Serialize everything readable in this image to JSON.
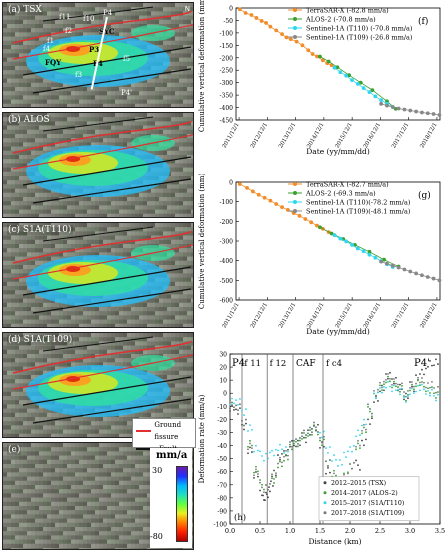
{
  "panels": [
    {
      "label": "(a) TSX"
    },
    {
      "label": "(b) ALOS"
    },
    {
      "label": "(c) S1A(T110)"
    },
    {
      "label": "(d) S1A(T109)"
    },
    {
      "label": "(e)"
    }
  ],
  "map_a_labels": {
    "p4": "P4",
    "p4b": "P4'",
    "syc": "SYC",
    "fqy": "FQY",
    "f4": "F4",
    "p3": "P3",
    "f2": "f2",
    "f4b": "f4",
    "f5": "f5",
    "f3": "f3",
    "f1": "f1",
    "f11": "f11",
    "f10": "f10"
  },
  "north": "N",
  "legend_map": {
    "ground_fissure": "Ground fissure",
    "fault": "Fault",
    "unit": "mm/a",
    "max": "30",
    "min": "-80",
    "ground_fissure_color": "#e03030",
    "fault_color": "#111111"
  },
  "chart_data": [
    {
      "type": "scatter",
      "panel_label": "(f)",
      "xlabel": "Date (yy/mm/dd)",
      "ylabel": "Cumulative vertical deformation (mm)",
      "ylim": [
        -450,
        0
      ],
      "yticks": [
        0,
        -50,
        -100,
        -150,
        -200,
        -250,
        -300,
        -350,
        -400,
        -450
      ],
      "xticks": [
        "2011/12/1",
        "2012/12/1",
        "2013/12/1",
        "2014/12/1",
        "2015/12/1",
        "2016/12/1",
        "2017/12/1",
        "2018/12/1"
      ],
      "xlim": [
        2011.92,
        2018.92
      ],
      "series": [
        {
          "name": "TerraSAR-X (-82.8 mm/a)",
          "color": "#f28c28",
          "x": [
            2012.05,
            2012.25,
            2012.45,
            2012.62,
            2012.8,
            2012.95,
            2013.1,
            2013.3,
            2013.5,
            2013.65,
            2013.8,
            2014.0,
            2014.2,
            2014.4,
            2014.55,
            2014.7,
            2014.9,
            2015.05,
            2015.2,
            2015.35
          ],
          "y": [
            -5,
            -20,
            -28,
            -40,
            -52,
            -60,
            -75,
            -90,
            -105,
            -118,
            -125,
            -135,
            -150,
            -170,
            -185,
            -195,
            -210,
            -222,
            -230,
            -240
          ]
        },
        {
          "name": "ALOS-2 (-70.8 mm/a)",
          "color": "#3aa02e",
          "x": [
            2014.8,
            2015.1,
            2015.4,
            2015.8,
            2016.2,
            2016.6,
            2017.1,
            2017.4
          ],
          "y": [
            -195,
            -215,
            -238,
            -270,
            -300,
            -330,
            -375,
            -405
          ]
        },
        {
          "name": "Sentinel-1A (T110) (-70.8 mm/a)",
          "color": "#2fd6f0",
          "x": [
            2015.3,
            2015.5,
            2015.7,
            2015.9,
            2016.1,
            2016.3,
            2016.5,
            2016.7,
            2016.9,
            2017.1,
            2017.3
          ],
          "y": [
            -240,
            -258,
            -272,
            -290,
            -305,
            -322,
            -338,
            -355,
            -370,
            -385,
            -398
          ]
        },
        {
          "name": "Sentinel-1A (T109) (-26.8 mm/a)",
          "color": "#888888",
          "x": [
            2016.9,
            2017.1,
            2017.3,
            2017.5,
            2017.7,
            2017.9,
            2018.1,
            2018.3,
            2018.5,
            2018.7,
            2018.9
          ],
          "y": [
            -385,
            -392,
            -398,
            -404,
            -408,
            -412,
            -416,
            -420,
            -423,
            -426,
            -430
          ]
        }
      ]
    },
    {
      "type": "scatter",
      "panel_label": "(g)",
      "xlabel": "Date (yy/mm/dd)",
      "ylabel": "Cumulative vertical deformation (mm)",
      "ylim": [
        -600,
        0
      ],
      "yticks": [
        0,
        -100,
        -200,
        -300,
        -400,
        -500,
        -600
      ],
      "xticks": [
        "2011/12/1",
        "2012/12/1",
        "2013/12/1",
        "2014/12/1",
        "2015/12/1",
        "2016/12/1",
        "2017/12/1",
        "2018/12/1"
      ],
      "xlim": [
        2011.92,
        2018.92
      ],
      "series": [
        {
          "name": "TerraSAR-X (-82.7 mm/a)",
          "color": "#f28c28",
          "x": [
            2012.05,
            2012.3,
            2012.5,
            2012.7,
            2012.9,
            2013.1,
            2013.3,
            2013.5,
            2013.7,
            2013.9,
            2014.1,
            2014.3,
            2014.5,
            2014.7,
            2014.9,
            2015.1,
            2015.3
          ],
          "y": [
            -10,
            -30,
            -48,
            -65,
            -80,
            -95,
            -112,
            -128,
            -142,
            -158,
            -172,
            -188,
            -205,
            -222,
            -238,
            -255,
            -270
          ]
        },
        {
          "name": "ALOS-2 (-69.3 mm/a)",
          "color": "#3aa02e",
          "x": [
            2014.8,
            2015.2,
            2015.6,
            2016.0,
            2016.5,
            2017.0,
            2017.5
          ],
          "y": [
            -230,
            -262,
            -290,
            -320,
            -355,
            -395,
            -430
          ]
        },
        {
          "name": "Sentinel-1A (T110)(-78.2 mm/a)",
          "color": "#2fd6f0",
          "x": [
            2015.3,
            2015.5,
            2015.7,
            2015.9,
            2016.1,
            2016.3,
            2016.5,
            2016.7,
            2016.9,
            2017.1,
            2017.3
          ],
          "y": [
            -270,
            -288,
            -302,
            -320,
            -338,
            -352,
            -370,
            -385,
            -402,
            -418,
            -432
          ]
        },
        {
          "name": "Sentinel-1A (T109)(-48.1 mm/a)",
          "color": "#888888",
          "x": [
            2016.9,
            2017.1,
            2017.3,
            2017.5,
            2017.7,
            2017.9,
            2018.1,
            2018.3,
            2018.5,
            2018.7,
            2018.9
          ],
          "y": [
            -405,
            -415,
            -425,
            -435,
            -445,
            -455,
            -465,
            -474,
            -483,
            -491,
            -500
          ]
        }
      ]
    },
    {
      "type": "line",
      "panel_label": "(h)",
      "xlabel": "Distance (km)",
      "ylabel": "Deformation rate (mm/a)",
      "xlim": [
        0,
        3.5
      ],
      "ylim": [
        -100,
        30
      ],
      "xticks": [
        0.0,
        0.5,
        1.0,
        1.5,
        2.0,
        2.5,
        3.0,
        3.5
      ],
      "yticks": [
        30,
        20,
        10,
        0,
        -10,
        -20,
        -30,
        -40,
        -50,
        -60,
        -70,
        -80,
        -90,
        -100
      ],
      "annotations": {
        "p4": "P4",
        "p4b": "P4'",
        "f11": "f 11",
        "f12": "f 12",
        "caf": "CAF",
        "fc4": "f c4"
      },
      "vlines": [
        0.2,
        0.62,
        1.05,
        1.55
      ],
      "series": [
        {
          "name": "2012–2015 (TSX)",
          "color": "#444444",
          "x": [
            0,
            0.1,
            0.2,
            0.3,
            0.4,
            0.5,
            0.55,
            0.6,
            0.65,
            0.7,
            0.8,
            0.9,
            1.0,
            1.1,
            1.2,
            1.3,
            1.4,
            1.5,
            1.6,
            1.7,
            1.8,
            1.9,
            2.0,
            2.1,
            2.2,
            2.3,
            2.4,
            2.5,
            2.6,
            2.7,
            2.8,
            2.9,
            3.0,
            3.1,
            3.2,
            3.3,
            3.4
          ],
          "y": [
            -10,
            -15,
            -25,
            -45,
            -62,
            -78,
            -80,
            -76,
            -70,
            -60,
            -50,
            -45,
            -40,
            -38,
            -34,
            -30,
            -25,
            -40,
            -58,
            -72,
            -78,
            -80,
            -70,
            -55,
            -38,
            -20,
            -5,
            5,
            12,
            10,
            3,
            -2,
            5,
            12,
            18,
            22,
            25
          ]
        },
        {
          "name": "2014–2017 (ALOS-2)",
          "color": "#3aa02e",
          "x": [
            0,
            0.1,
            0.2,
            0.3,
            0.4,
            0.5,
            0.6,
            0.7,
            0.8,
            0.9,
            1.0,
            1.1,
            1.2,
            1.3,
            1.4,
            1.5,
            1.6,
            1.7,
            1.8,
            1.9,
            2.0,
            2.1,
            2.2,
            2.3,
            2.4,
            2.5,
            2.6,
            2.7,
            2.8,
            2.9,
            3.0,
            3.1,
            3.2,
            3.3,
            3.4
          ],
          "y": [
            -8,
            -12,
            -22,
            -40,
            -58,
            -70,
            -72,
            -65,
            -55,
            -48,
            -42,
            -38,
            -34,
            -30,
            -28,
            -38,
            -52,
            -62,
            -68,
            -64,
            -55,
            -42,
            -28,
            -14,
            -2,
            6,
            10,
            8,
            2,
            -3,
            3,
            8,
            5,
            2,
            0
          ]
        },
        {
          "name": "2015–2017 (S1A/T110)",
          "color": "#2fd6f0",
          "x": [
            0,
            0.1,
            0.2,
            0.3,
            0.4,
            0.5,
            0.6,
            0.7,
            0.8,
            0.9,
            1.0,
            1.1,
            1.2,
            1.3,
            1.4,
            1.5,
            1.6,
            1.7,
            1.8,
            1.9,
            2.0,
            2.1,
            2.2,
            2.3,
            2.4,
            2.5,
            2.6,
            2.7,
            2.8,
            2.9,
            3.0,
            3.1,
            3.2,
            3.3,
            3.4
          ],
          "y": [
            -5,
            -8,
            -14,
            -28,
            -42,
            -48,
            -48,
            -44,
            -42,
            -42,
            -40,
            -36,
            -32,
            -28,
            -26,
            -32,
            -42,
            -50,
            -52,
            -48,
            -42,
            -32,
            -22,
            -12,
            -2,
            4,
            6,
            5,
            0,
            -4,
            0,
            4,
            3,
            0,
            -2
          ]
        },
        {
          "name": "2017–2018 (S1A/T109)",
          "color": "#7a7a7a",
          "x": [
            0,
            0.1,
            0.2,
            0.3,
            0.4,
            0.5,
            0.6,
            0.7,
            0.8,
            0.9,
            1.0,
            1.1,
            1.2,
            1.3,
            1.4,
            1.5,
            1.6,
            1.7,
            1.8,
            1.9,
            2.0,
            2.1,
            2.2,
            2.3,
            2.4,
            2.5,
            2.6,
            2.7,
            2.8,
            2.9,
            3.0,
            3.1,
            3.2,
            3.3,
            3.4
          ],
          "y": [
            -8,
            -12,
            -22,
            -42,
            -60,
            -72,
            -72,
            -62,
            -52,
            -45,
            -40,
            -36,
            -32,
            -28,
            -26,
            -36,
            -52,
            -64,
            -70,
            -65,
            -55,
            -40,
            -26,
            -12,
            0,
            8,
            12,
            10,
            4,
            0,
            5,
            10,
            8,
            6,
            4
          ]
        }
      ]
    }
  ]
}
